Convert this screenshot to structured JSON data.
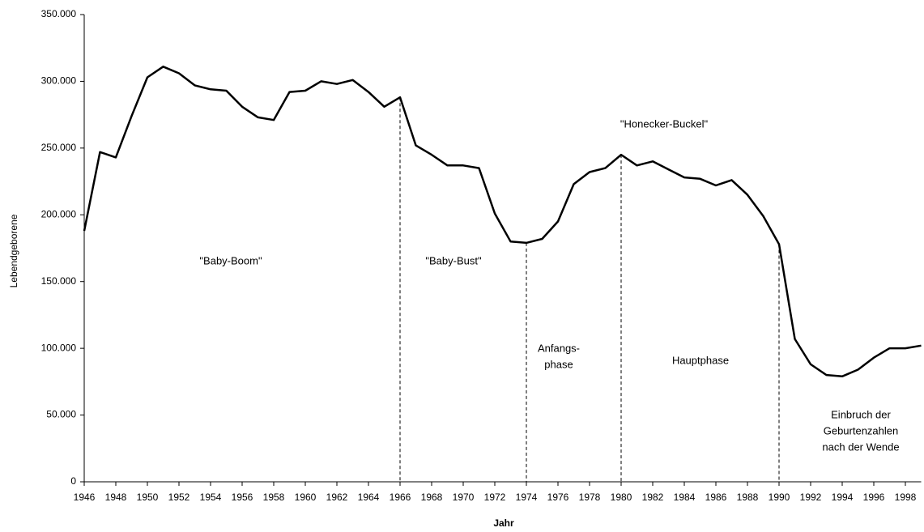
{
  "chart_data": {
    "type": "line",
    "x_label": "Jahr",
    "y_label": "Lebendgeborene",
    "x": [
      1946,
      1947,
      1948,
      1949,
      1950,
      1951,
      1952,
      1953,
      1954,
      1955,
      1956,
      1957,
      1958,
      1959,
      1960,
      1961,
      1962,
      1963,
      1964,
      1965,
      1966,
      1967,
      1968,
      1969,
      1970,
      1971,
      1972,
      1973,
      1974,
      1975,
      1976,
      1977,
      1978,
      1979,
      1980,
      1981,
      1982,
      1983,
      1984,
      1985,
      1986,
      1987,
      1988,
      1989,
      1990,
      1991,
      1992,
      1993,
      1994,
      1995,
      1996,
      1997,
      1998,
      1999
    ],
    "series": [
      {
        "color": "#000000",
        "values": [
          188000,
          247000,
          243000,
          274000,
          303000,
          311000,
          306000,
          297000,
          294000,
          293000,
          281000,
          273000,
          271000,
          292000,
          293000,
          300000,
          298000,
          301000,
          292000,
          281000,
          288000,
          252000,
          245000,
          237000,
          237000,
          235000,
          201000,
          180000,
          179000,
          182000,
          195000,
          223000,
          232000,
          235000,
          245000,
          237000,
          240000,
          234000,
          228000,
          227000,
          222000,
          226000,
          215000,
          199000,
          178000,
          107000,
          88000,
          80000,
          79000,
          84000,
          93000,
          100000,
          100000,
          102000
        ]
      }
    ],
    "xlim": [
      1946,
      1999
    ],
    "xticks": [
      1946,
      1948,
      1950,
      1952,
      1954,
      1956,
      1958,
      1960,
      1962,
      1964,
      1966,
      1968,
      1970,
      1972,
      1974,
      1976,
      1978,
      1980,
      1982,
      1984,
      1986,
      1988,
      1990,
      1992,
      1994,
      1996,
      1998
    ],
    "ylim": [
      0,
      350000
    ],
    "yticks": [
      0,
      {
        "value": 50000,
        "label": "50.000"
      },
      {
        "value": 100000,
        "label": "100.000"
      },
      {
        "value": 150000,
        "label": "150.000"
      },
      {
        "value": 200000,
        "label": "200.000"
      },
      {
        "value": 250000,
        "label": "250.000"
      },
      {
        "value": 300000,
        "label": "300.000"
      },
      {
        "value": 350000,
        "label": "350.000"
      }
    ],
    "dividers": [
      1966,
      1974,
      1980,
      1990
    ],
    "annotations": [
      [
        "\"Baby-Boom\""
      ],
      [
        "\"Baby-Bust\""
      ],
      [
        "\"Honecker-Buckel\""
      ],
      [
        "Anfangs-",
        "phase"
      ],
      [
        "Hauptphase"
      ],
      [
        "Einbruch der",
        "Geburtenzahlen",
        "nach der Wende"
      ]
    ],
    "grid": false
  }
}
